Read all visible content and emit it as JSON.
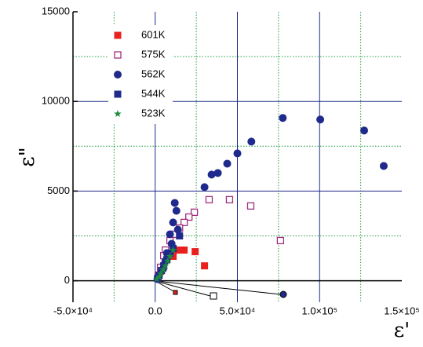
{
  "chart_data": {
    "type": "scatter",
    "x_label": "ε'",
    "y_label": "ε\"",
    "xlim": [
      -50000,
      150000
    ],
    "ylim": [
      -1200,
      15000
    ],
    "xticks": [
      {
        "value": -50000,
        "label": "-5.0×10⁴"
      },
      {
        "value": 0,
        "label": "0.0"
      },
      {
        "value": 50000,
        "label": "5.0×10⁴"
      },
      {
        "value": 100000,
        "label": "1.0×10⁵"
      },
      {
        "value": 150000,
        "label": "1.5×10⁵"
      }
    ],
    "yticks": [
      0,
      5000,
      10000,
      15000
    ],
    "x_minor_grid": [
      -25000,
      25000,
      75000,
      125000
    ],
    "y_minor_grid": [
      2500,
      7500,
      12500
    ],
    "grid": true,
    "legend": "upper left",
    "series": [
      {
        "name": "601K",
        "color": "#e8201e",
        "marker": "square",
        "x": [
          30000,
          24300,
          17600,
          14800,
          10900,
          10900,
          7100,
          5200,
          3300,
          1900
        ],
        "values": [
          830,
          1620,
          1710,
          1710,
          1620,
          1360,
          1180,
          830,
          530,
          220
        ]
      },
      {
        "name": "575K",
        "color": "#a0307f",
        "marker": "open-square",
        "x": [
          76200,
          58100,
          45200,
          32800,
          23800,
          20500,
          17600,
          14800,
          11900,
          9000,
          6200,
          5200,
          3300,
          1900
        ],
        "values": [
          2240,
          4170,
          4520,
          4520,
          3820,
          3550,
          3250,
          2940,
          2590,
          2240,
          1710,
          1400,
          750,
          310
        ]
      },
      {
        "name": "562K",
        "color": "#1f2a8c",
        "marker": "circle",
        "x": [
          77600,
          100400,
          127100,
          139000,
          58500,
          50000,
          43800,
          38100,
          34300,
          30000,
          11900,
          12900,
          10900,
          13800,
          9000,
          10000,
          7100,
          6200,
          4800,
          2400,
          1400
        ],
        "values": [
          9080,
          8990,
          8380,
          6400,
          7760,
          7100,
          6530,
          6010,
          5920,
          5220,
          4340,
          3900,
          3250,
          2850,
          2590,
          2060,
          1540,
          1100,
          660,
          310,
          90
        ]
      },
      {
        "name": "544K",
        "color": "#1f2a8c",
        "marker": "filled-square",
        "x": [
          14800,
          10900,
          9000,
          7100,
          5200,
          3800,
          2400,
          1400
        ],
        "values": [
          2500,
          1800,
          1540,
          1180,
          830,
          570,
          310,
          130
        ]
      },
      {
        "name": "523K",
        "color": "#1e8a3e",
        "marker": "star",
        "x": [
          10900,
          9000,
          7600,
          6200,
          4800,
          3300,
          2400,
          950
        ],
        "values": [
          1710,
          1360,
          1100,
          830,
          610,
          390,
          220,
          90
        ]
      }
    ]
  }
}
